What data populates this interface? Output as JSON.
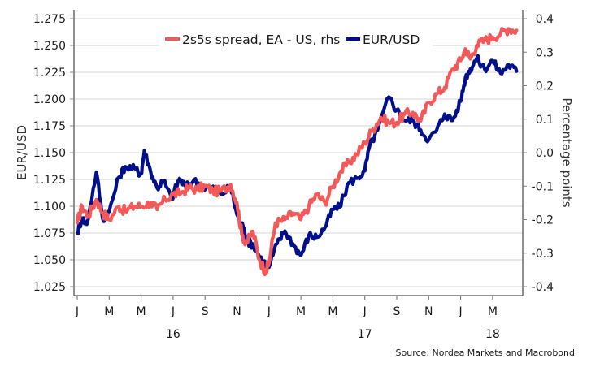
{
  "chart_data": {
    "type": "line",
    "title": "",
    "source": "Source: Nordea Markets and Macrobond",
    "x_axis": {
      "unit": "months since Jan 2016",
      "range": [
        0,
        27.8
      ],
      "month_ticks": [
        {
          "m": 0,
          "label": "J"
        },
        {
          "m": 2,
          "label": "M"
        },
        {
          "m": 4,
          "label": "M"
        },
        {
          "m": 6,
          "label": "J"
        },
        {
          "m": 8,
          "label": "S"
        },
        {
          "m": 10,
          "label": "N"
        },
        {
          "m": 12,
          "label": "J"
        },
        {
          "m": 14,
          "label": "M"
        },
        {
          "m": 16,
          "label": "M"
        },
        {
          "m": 18,
          "label": "J"
        },
        {
          "m": 20,
          "label": "S"
        },
        {
          "m": 22,
          "label": "N"
        },
        {
          "m": 24,
          "label": "J"
        },
        {
          "m": 26,
          "label": "M"
        }
      ],
      "year_labels": [
        {
          "m": 6,
          "label": "16"
        },
        {
          "m": 18,
          "label": "17"
        },
        {
          "m": 26,
          "label": "18"
        }
      ]
    },
    "y_left": {
      "label": "EUR/USD",
      "range": [
        1.025,
        1.275
      ],
      "ticks": [
        "1.025",
        "1.050",
        "1.075",
        "1.100",
        "1.125",
        "1.150",
        "1.175",
        "1.200",
        "1.225",
        "1.250",
        "1.275"
      ],
      "grid": true
    },
    "y_right": {
      "label": "Percentage points",
      "range": [
        -0.4,
        0.4
      ],
      "ticks": [
        "-0.4",
        "-0.3",
        "-0.2",
        "-0.1",
        "0.0",
        "0.1",
        "0.2",
        "0.3",
        "0.4"
      ]
    },
    "legend": {
      "placement": "top-center",
      "entries": [
        {
          "key": "spread",
          "label": "2s5s spread, EA - US, rhs",
          "color": "#f4595a"
        },
        {
          "key": "eurusd",
          "label": "EUR/USD",
          "color": "#000f8c"
        }
      ]
    },
    "series": [
      {
        "name": "2s5s spread, EA - US, rhs",
        "axis": "right",
        "color": "#f4595a",
        "x": [
          0,
          0.3,
          0.7,
          1.2,
          1.6,
          2.0,
          2.6,
          3.0,
          3.6,
          4.0,
          4.6,
          5.0,
          5.5,
          6.0,
          6.5,
          7.0,
          7.5,
          8.0,
          8.5,
          9.0,
          9.6,
          10.0,
          10.3,
          10.6,
          11.0,
          11.4,
          11.8,
          12.0,
          12.4,
          13.0,
          13.5,
          14.0,
          14.5,
          15.0,
          15.5,
          16.0,
          16.5,
          17.0,
          17.5,
          18.0,
          18.5,
          19.0,
          19.5,
          20.0,
          20.5,
          21.0,
          21.5,
          22.0,
          22.5,
          23.0,
          23.5,
          24.0,
          24.3,
          24.6,
          25.0,
          25.5,
          26.0,
          26.5,
          27.0,
          27.5
        ],
        "values": [
          -0.21,
          -0.16,
          -0.19,
          -0.14,
          -0.18,
          -0.2,
          -0.16,
          -0.175,
          -0.16,
          -0.16,
          -0.15,
          -0.17,
          -0.14,
          -0.125,
          -0.12,
          -0.105,
          -0.11,
          -0.1,
          -0.115,
          -0.115,
          -0.095,
          -0.15,
          -0.245,
          -0.27,
          -0.235,
          -0.32,
          -0.355,
          -0.33,
          -0.21,
          -0.2,
          -0.18,
          -0.2,
          -0.16,
          -0.125,
          -0.15,
          -0.1,
          -0.055,
          -0.03,
          -0.005,
          0.03,
          0.07,
          0.105,
          0.09,
          0.09,
          0.115,
          0.12,
          0.095,
          0.15,
          0.175,
          0.195,
          0.25,
          0.275,
          0.31,
          0.28,
          0.32,
          0.335,
          0.345,
          0.355,
          0.37,
          0.365
        ]
      },
      {
        "name": "EUR/USD",
        "axis": "left",
        "color": "#000f8c",
        "x": [
          0,
          0.3,
          0.6,
          1.2,
          1.6,
          2.0,
          2.6,
          3.0,
          3.6,
          4.0,
          4.2,
          4.6,
          5.0,
          5.4,
          5.9,
          6.4,
          6.8,
          7.3,
          7.9,
          8.4,
          9.0,
          9.6,
          10.0,
          10.4,
          10.7,
          11.0,
          11.6,
          12.0,
          12.5,
          13.0,
          13.5,
          14.0,
          14.5,
          15.0,
          15.5,
          16.0,
          16.4,
          17.0,
          17.5,
          18.0,
          18.3,
          18.8,
          19.5,
          20.0,
          20.5,
          21.0,
          21.5,
          22.0,
          22.5,
          23.0,
          23.5,
          24.0,
          24.3,
          24.6,
          25.0,
          25.5,
          26.0,
          26.5,
          27.0,
          27.5
        ],
        "values": [
          1.075,
          1.089,
          1.083,
          1.132,
          1.088,
          1.095,
          1.127,
          1.137,
          1.135,
          1.13,
          1.152,
          1.132,
          1.117,
          1.124,
          1.107,
          1.126,
          1.118,
          1.124,
          1.118,
          1.117,
          1.111,
          1.118,
          1.092,
          1.08,
          1.067,
          1.064,
          1.049,
          1.043,
          1.065,
          1.077,
          1.065,
          1.054,
          1.073,
          1.071,
          1.08,
          1.097,
          1.099,
          1.122,
          1.126,
          1.133,
          1.156,
          1.171,
          1.202,
          1.19,
          1.18,
          1.18,
          1.171,
          1.162,
          1.171,
          1.186,
          1.18,
          1.198,
          1.22,
          1.228,
          1.238,
          1.228,
          1.236,
          1.224,
          1.232,
          1.226
        ]
      }
    ]
  }
}
